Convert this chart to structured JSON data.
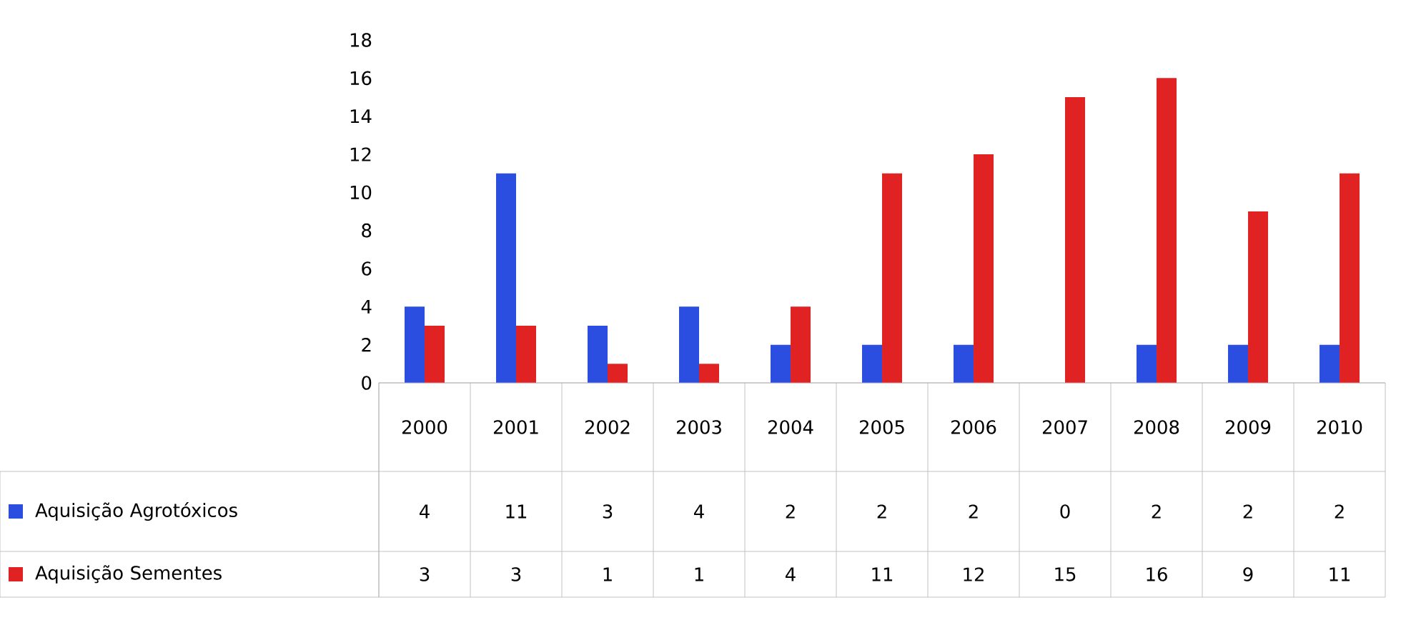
{
  "chart_data": {
    "type": "bar",
    "categories": [
      "2000",
      "2001",
      "2002",
      "2003",
      "2004",
      "2005",
      "2006",
      "2007",
      "2008",
      "2009",
      "2010"
    ],
    "series": [
      {
        "name": "Aquisição Agrotóxicos",
        "color": "#2b4ee0",
        "values": [
          4,
          11,
          3,
          4,
          2,
          2,
          2,
          0,
          2,
          2,
          2
        ]
      },
      {
        "name": "Aquisição Sementes",
        "color": "#e02222",
        "values": [
          3,
          3,
          1,
          1,
          4,
          11,
          12,
          15,
          16,
          9,
          11
        ]
      }
    ],
    "ylim": [
      0,
      18
    ],
    "yticks": [
      0,
      2,
      4,
      6,
      8,
      10,
      12,
      14,
      16,
      18
    ],
    "data_labels": true,
    "legend": "bottom left"
  }
}
